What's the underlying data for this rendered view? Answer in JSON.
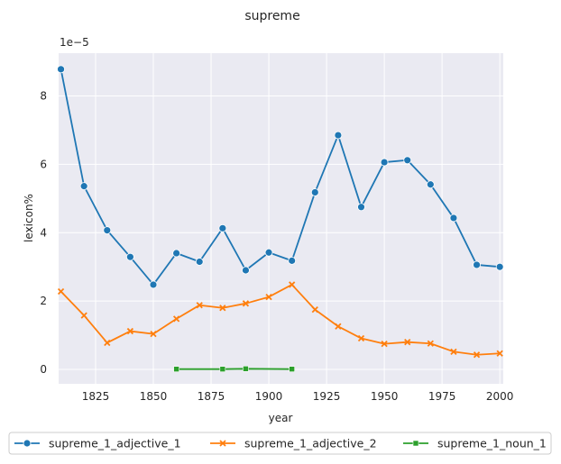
{
  "chart_data": {
    "type": "line",
    "title": "supreme",
    "xlabel": "year",
    "ylabel": "lexicon%",
    "y_multiplier_label": "1e−5",
    "xlim": [
      1809,
      2001.5
    ],
    "ylim": [
      -0.42,
      9.25
    ],
    "xticks": [
      1825,
      1850,
      1875,
      1900,
      1925,
      1950,
      1975,
      2000
    ],
    "yticks": [
      0,
      2,
      4,
      6,
      8
    ],
    "grid": true,
    "legend_position": "bottom",
    "series": [
      {
        "name": "supreme_1_adjective_1",
        "color": "#1f77b4",
        "marker": "circle",
        "x": [
          1810,
          1820,
          1830,
          1840,
          1850,
          1860,
          1870,
          1880,
          1890,
          1900,
          1910,
          1920,
          1930,
          1940,
          1950,
          1960,
          1970,
          1980,
          1990,
          2000
        ],
        "values": [
          8.78,
          5.36,
          4.07,
          3.29,
          2.48,
          3.4,
          3.15,
          4.13,
          2.9,
          3.42,
          3.18,
          5.18,
          6.85,
          4.75,
          6.06,
          6.12,
          5.41,
          4.43,
          3.06,
          3.0
        ]
      },
      {
        "name": "supreme_1_adjective_2",
        "color": "#ff7f0e",
        "marker": "x",
        "x": [
          1810,
          1820,
          1830,
          1840,
          1850,
          1860,
          1870,
          1880,
          1890,
          1900,
          1910,
          1920,
          1930,
          1940,
          1950,
          1960,
          1970,
          1980,
          1990,
          2000
        ],
        "values": [
          2.28,
          1.58,
          0.78,
          1.12,
          1.04,
          1.48,
          1.88,
          1.8,
          1.93,
          2.12,
          2.48,
          1.75,
          1.26,
          0.91,
          0.75,
          0.8,
          0.76,
          0.52,
          0.43,
          0.47
        ]
      },
      {
        "name": "supreme_1_noun_1",
        "color": "#2ca02c",
        "marker": "square",
        "x": [
          1860,
          1880,
          1890,
          1910
        ],
        "values": [
          0.01,
          0.01,
          0.02,
          0.01
        ]
      }
    ]
  }
}
